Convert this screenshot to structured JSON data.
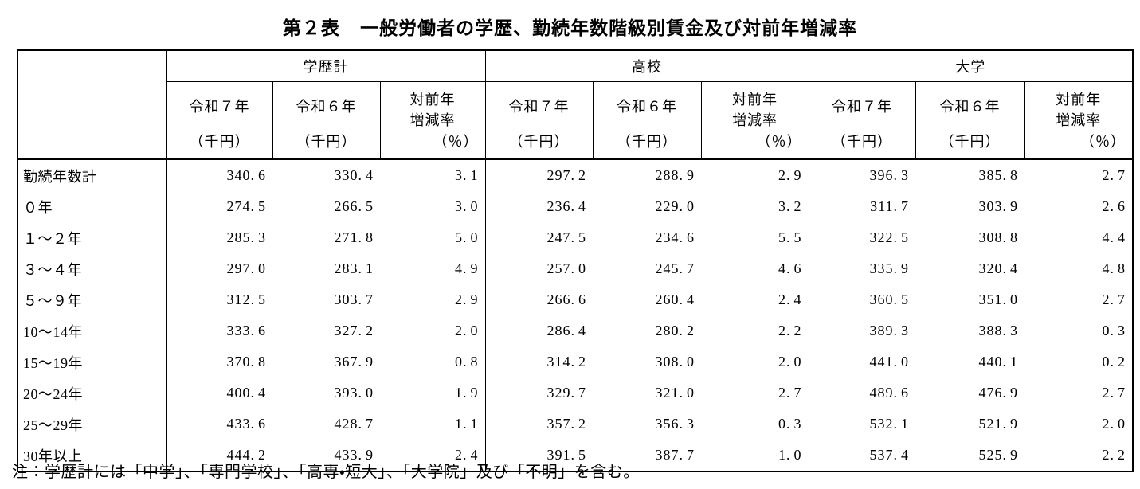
{
  "title": {
    "label": "第２表",
    "text": "一般労働者の学歴、勤続年数階級別賃金及び対前年増減率"
  },
  "note": "注：学歴計には「中学」、「専門学校」、「高専・短大」、「大学院」及び「不明」を含む。",
  "table": {
    "groups": [
      {
        "label": "学歴計"
      },
      {
        "label": "高校"
      },
      {
        "label": "大学"
      }
    ],
    "sub_headers": {
      "year_current": "令和７年",
      "year_prev": "令和６年",
      "rate_line1": "対前年",
      "rate_line2": "増減率",
      "unit_yen": "（千円）",
      "unit_pct": "（％）"
    }
  },
  "chart_data": {
    "type": "table",
    "title": "第２表　一般労働者の学歴、勤続年数階級別賃金及び対前年増減率",
    "categories": [
      "勤続年数計",
      "０年",
      "１～２年",
      "３～４年",
      "５～９年",
      "10～14年",
      "15～19年",
      "20～24年",
      "25～29年",
      "30年以上"
    ],
    "series": [
      {
        "name": "学歴計 令和7年（千円）",
        "values": [
          340.6,
          274.5,
          285.3,
          297.0,
          312.5,
          333.6,
          370.8,
          400.4,
          433.6,
          444.2
        ]
      },
      {
        "name": "学歴計 令和6年（千円）",
        "values": [
          330.4,
          266.5,
          271.8,
          283.1,
          303.7,
          327.2,
          367.9,
          393.0,
          428.7,
          433.9
        ]
      },
      {
        "name": "学歴計 対前年増減率（％）",
        "values": [
          3.1,
          3.0,
          5.0,
          4.9,
          2.9,
          2.0,
          0.8,
          1.9,
          1.1,
          2.4
        ]
      },
      {
        "name": "高校 令和7年（千円）",
        "values": [
          297.2,
          236.4,
          247.5,
          257.0,
          266.6,
          286.4,
          314.2,
          329.7,
          357.2,
          391.5
        ]
      },
      {
        "name": "高校 令和6年（千円）",
        "values": [
          288.9,
          229.0,
          234.6,
          245.7,
          260.4,
          280.2,
          308.0,
          321.0,
          356.3,
          387.7
        ]
      },
      {
        "name": "高校 対前年増減率（％）",
        "values": [
          2.9,
          3.2,
          5.5,
          4.6,
          2.4,
          2.2,
          2.0,
          2.7,
          0.3,
          1.0
        ]
      },
      {
        "name": "大学 令和7年（千円）",
        "values": [
          396.3,
          311.7,
          322.5,
          335.9,
          360.5,
          389.3,
          441.0,
          489.6,
          532.1,
          537.4
        ]
      },
      {
        "name": "大学 令和6年（千円）",
        "values": [
          385.8,
          303.9,
          308.8,
          320.4,
          351.0,
          388.3,
          440.1,
          476.9,
          521.9,
          525.9
        ]
      },
      {
        "name": "大学 対前年増減率（％）",
        "values": [
          2.7,
          2.6,
          4.4,
          4.8,
          2.7,
          0.3,
          0.2,
          2.7,
          2.0,
          2.2
        ]
      }
    ]
  }
}
